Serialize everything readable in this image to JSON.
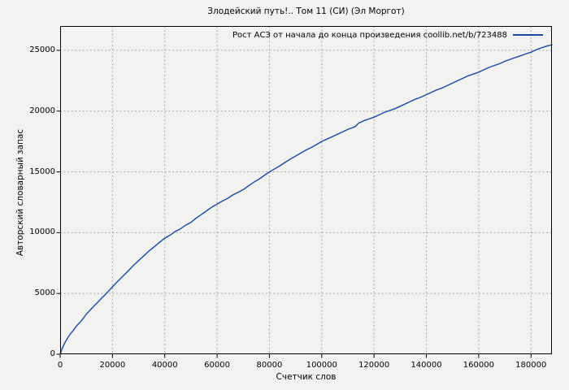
{
  "figure_title": "Злодейский путь!.. Том 11 (СИ) (Эл Моргот)",
  "chart_data": {
    "type": "line",
    "title": "Злодейский путь!.. Том 11 (СИ) (Эл Моргот)",
    "legend": "Рост АСЗ от начала до конца произведения coollib.net/b/723488",
    "legend_position": "top-right-inside",
    "xlabel": "Счетчик слов",
    "ylabel": "Авторский словарный запас",
    "xlim": [
      0,
      188000
    ],
    "ylim": [
      0,
      27000
    ],
    "xticks": [
      0,
      20000,
      40000,
      60000,
      80000,
      100000,
      120000,
      140000,
      160000,
      180000
    ],
    "yticks": [
      0,
      5000,
      10000,
      15000,
      20000,
      25000
    ],
    "grid": true,
    "grid_style": "dashed",
    "line_color": "#17479e",
    "grid_color": "#a6a6a6",
    "background_color": "#f2f2f0",
    "series": [
      {
        "name": "Рост АСЗ от начала до конца произведения coollib.net/b/723488",
        "points": [
          [
            0,
            0
          ],
          [
            500,
            320
          ],
          [
            1000,
            580
          ],
          [
            1500,
            810
          ],
          [
            2000,
            1020
          ],
          [
            3000,
            1400
          ],
          [
            4000,
            1700
          ],
          [
            5000,
            1950
          ],
          [
            6000,
            2250
          ],
          [
            7000,
            2500
          ],
          [
            8000,
            2720
          ],
          [
            9000,
            3000
          ],
          [
            10000,
            3300
          ],
          [
            11000,
            3520
          ],
          [
            12000,
            3750
          ],
          [
            13000,
            3980
          ],
          [
            14000,
            4200
          ],
          [
            15000,
            4420
          ],
          [
            16000,
            4650
          ],
          [
            17000,
            4850
          ],
          [
            18000,
            5080
          ],
          [
            19000,
            5300
          ],
          [
            20000,
            5550
          ],
          [
            22000,
            6000
          ],
          [
            24000,
            6420
          ],
          [
            26000,
            6850
          ],
          [
            28000,
            7300
          ],
          [
            30000,
            7700
          ],
          [
            32000,
            8100
          ],
          [
            34000,
            8500
          ],
          [
            36000,
            8850
          ],
          [
            38000,
            9200
          ],
          [
            40000,
            9550
          ],
          [
            42000,
            9800
          ],
          [
            44000,
            10100
          ],
          [
            46000,
            10320
          ],
          [
            48000,
            10620
          ],
          [
            50000,
            10850
          ],
          [
            52000,
            11200
          ],
          [
            54000,
            11500
          ],
          [
            56000,
            11800
          ],
          [
            58000,
            12100
          ],
          [
            60000,
            12350
          ],
          [
            62000,
            12600
          ],
          [
            64000,
            12820
          ],
          [
            66000,
            13100
          ],
          [
            68000,
            13320
          ],
          [
            70000,
            13550
          ],
          [
            72000,
            13850
          ],
          [
            74000,
            14150
          ],
          [
            76000,
            14400
          ],
          [
            78000,
            14700
          ],
          [
            80000,
            15000
          ],
          [
            82000,
            15250
          ],
          [
            84000,
            15500
          ],
          [
            86000,
            15780
          ],
          [
            88000,
            16050
          ],
          [
            90000,
            16300
          ],
          [
            92000,
            16550
          ],
          [
            94000,
            16800
          ],
          [
            96000,
            17000
          ],
          [
            98000,
            17250
          ],
          [
            100000,
            17500
          ],
          [
            102000,
            17700
          ],
          [
            104000,
            17900
          ],
          [
            106000,
            18100
          ],
          [
            108000,
            18300
          ],
          [
            110000,
            18500
          ],
          [
            112000,
            18650
          ],
          [
            113000,
            18750
          ],
          [
            114000,
            19000
          ],
          [
            115000,
            19100
          ],
          [
            116000,
            19200
          ],
          [
            118000,
            19350
          ],
          [
            120000,
            19500
          ],
          [
            122000,
            19700
          ],
          [
            124000,
            19900
          ],
          [
            126000,
            20050
          ],
          [
            128000,
            20200
          ],
          [
            130000,
            20400
          ],
          [
            132000,
            20600
          ],
          [
            134000,
            20800
          ],
          [
            136000,
            21000
          ],
          [
            138000,
            21150
          ],
          [
            140000,
            21350
          ],
          [
            142000,
            21550
          ],
          [
            144000,
            21750
          ],
          [
            146000,
            21900
          ],
          [
            148000,
            22100
          ],
          [
            150000,
            22300
          ],
          [
            152000,
            22500
          ],
          [
            154000,
            22700
          ],
          [
            156000,
            22900
          ],
          [
            158000,
            23050
          ],
          [
            160000,
            23200
          ],
          [
            162000,
            23400
          ],
          [
            164000,
            23600
          ],
          [
            166000,
            23750
          ],
          [
            168000,
            23900
          ],
          [
            170000,
            24100
          ],
          [
            172000,
            24250
          ],
          [
            174000,
            24400
          ],
          [
            176000,
            24550
          ],
          [
            178000,
            24700
          ],
          [
            180000,
            24850
          ],
          [
            182000,
            25050
          ],
          [
            184000,
            25200
          ],
          [
            186000,
            25350
          ],
          [
            188000,
            25450
          ]
        ]
      }
    ]
  }
}
